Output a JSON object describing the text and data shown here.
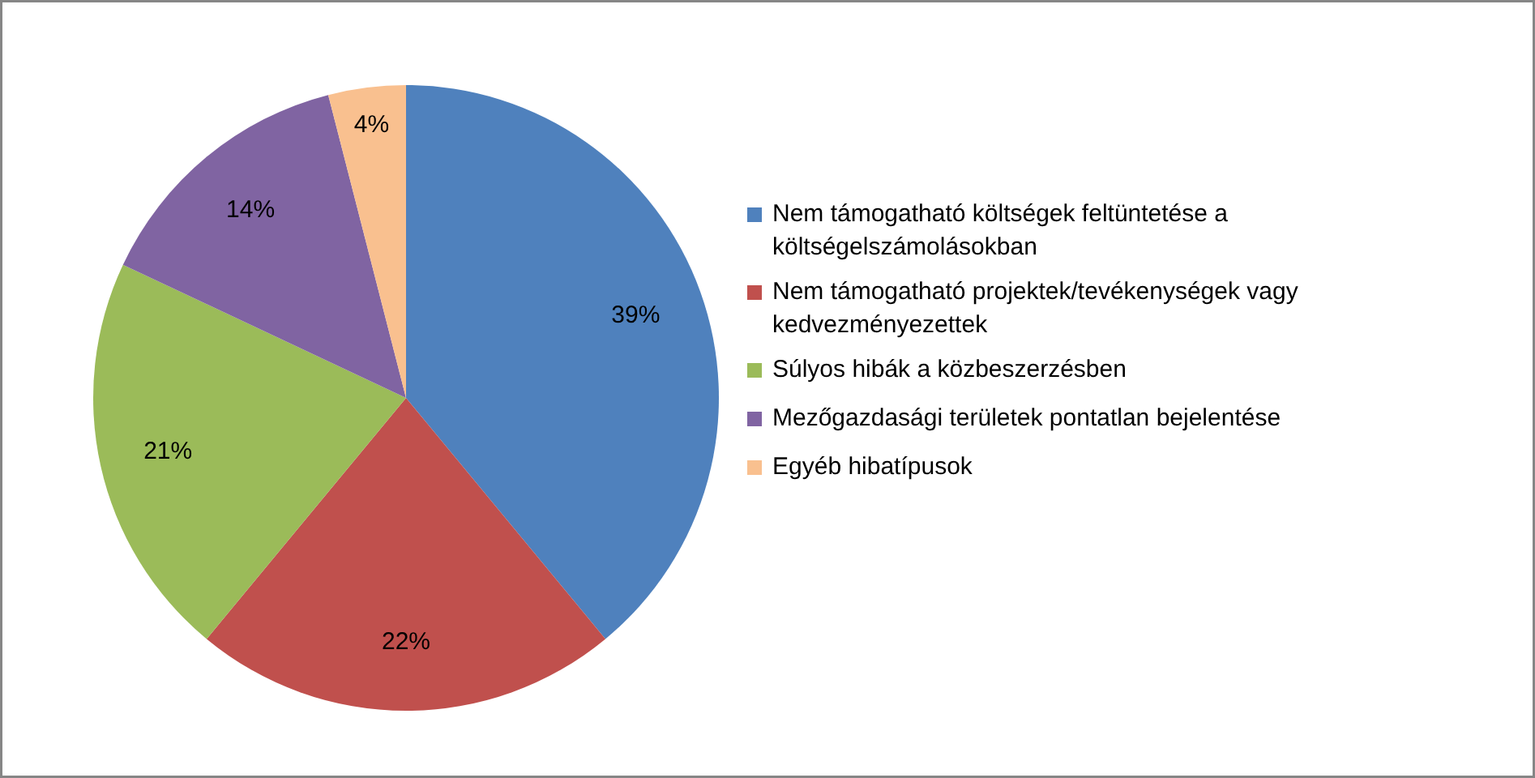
{
  "chart_data": {
    "type": "pie",
    "categories": [
      "Nem támogatható költségek feltüntetése a költségelszámolásokban",
      "Nem támogatható projektek/tevékenységek vagy kedvezményezettek",
      "Súlyos hibák a közbeszerzésben",
      "Mezőgazdasági területek pontatlan bejelentése",
      "Egyéb hibatípusok"
    ],
    "values": [
      39,
      22,
      21,
      14,
      4
    ],
    "colors": [
      "#4f81bd",
      "#c0504d",
      "#9bbb59",
      "#8064a2",
      "#f9c08f"
    ],
    "value_labels": [
      "39%",
      "22%",
      "21%",
      "14%",
      "4%"
    ],
    "legend": "right"
  }
}
